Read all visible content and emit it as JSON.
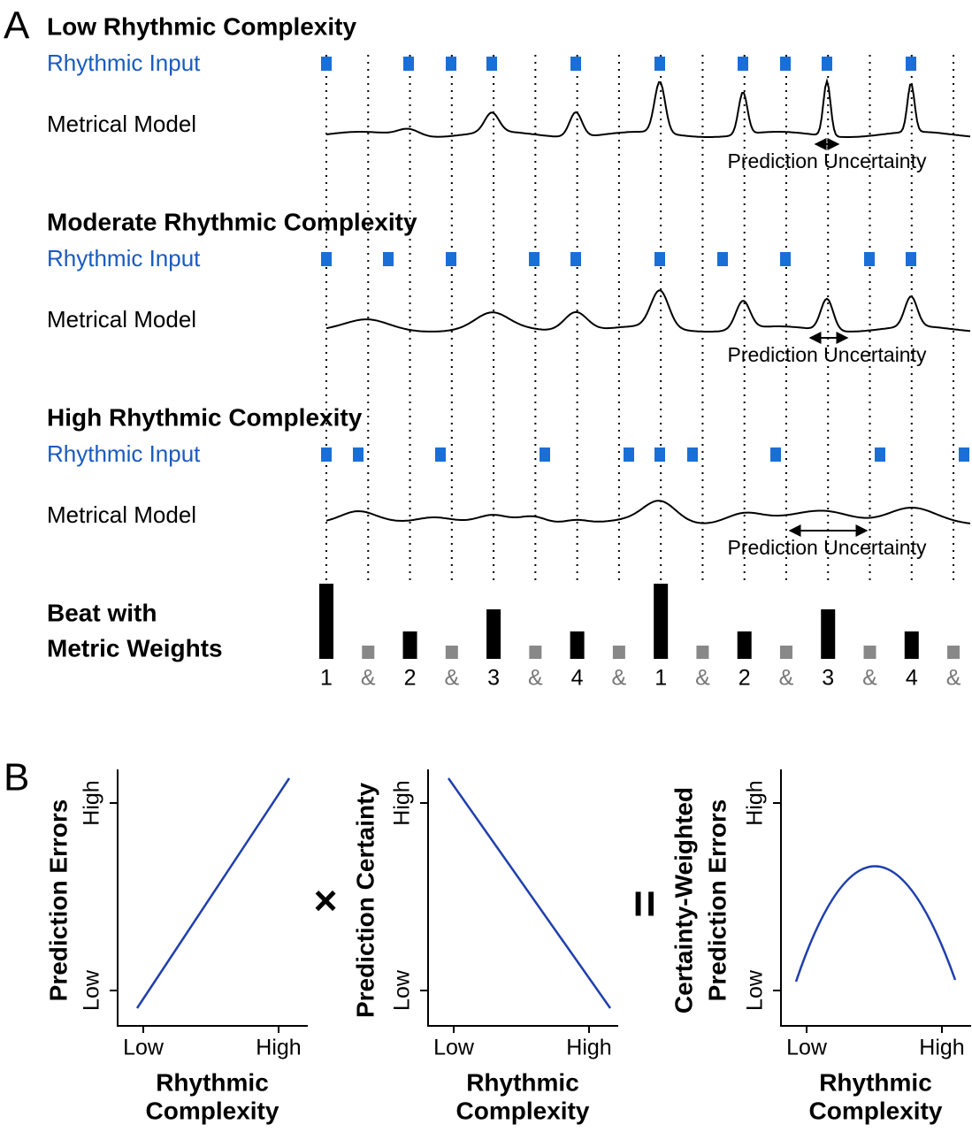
{
  "panel_a": {
    "label": "A",
    "sections": [
      {
        "title": "Low Rhythmic Complexity",
        "input_label": "Rhythmic Input",
        "model_label": "Metrical Model",
        "uncertainty_label": "Prediction Uncertainty"
      },
      {
        "title": "Moderate Rhythmic Complexity",
        "input_label": "Rhythmic Input",
        "model_label": "Metrical Model",
        "uncertainty_label": "Prediction Uncertainty"
      },
      {
        "title": "High Rhythmic Complexity",
        "input_label": "Rhythmic Input",
        "model_label": "Metrical Model",
        "uncertainty_label": "Prediction Uncertainty"
      }
    ],
    "beat_label": [
      "Beat with",
      "Metric Weights"
    ],
    "beat_numbers": [
      "1",
      "&",
      "2",
      "&",
      "3",
      "&",
      "4",
      "&",
      "1",
      "&",
      "2",
      "&",
      "3",
      "&",
      "4",
      "&"
    ]
  },
  "panel_b": {
    "label": "B",
    "plots": [
      {
        "y_label": [
          "Prediction Errors"
        ],
        "y_ticks": [
          "Low",
          "High"
        ],
        "x_ticks": [
          "Low",
          "High"
        ],
        "x_label": [
          "Rhythmic",
          "Complexity"
        ]
      },
      {
        "y_label": [
          "Prediction Certainty"
        ],
        "y_ticks": [
          "Low",
          "High"
        ],
        "x_ticks": [
          "Low",
          "High"
        ],
        "x_label": [
          "Rhythmic",
          "Complexity"
        ]
      },
      {
        "y_label": [
          "Certainty-Weighted",
          "Prediction Errors"
        ],
        "y_ticks": [
          "Low",
          "High"
        ],
        "x_ticks": [
          "Low",
          "High"
        ],
        "x_label": [
          "Rhythmic",
          "Complexity"
        ]
      }
    ],
    "operators": [
      "×",
      "="
    ]
  }
}
